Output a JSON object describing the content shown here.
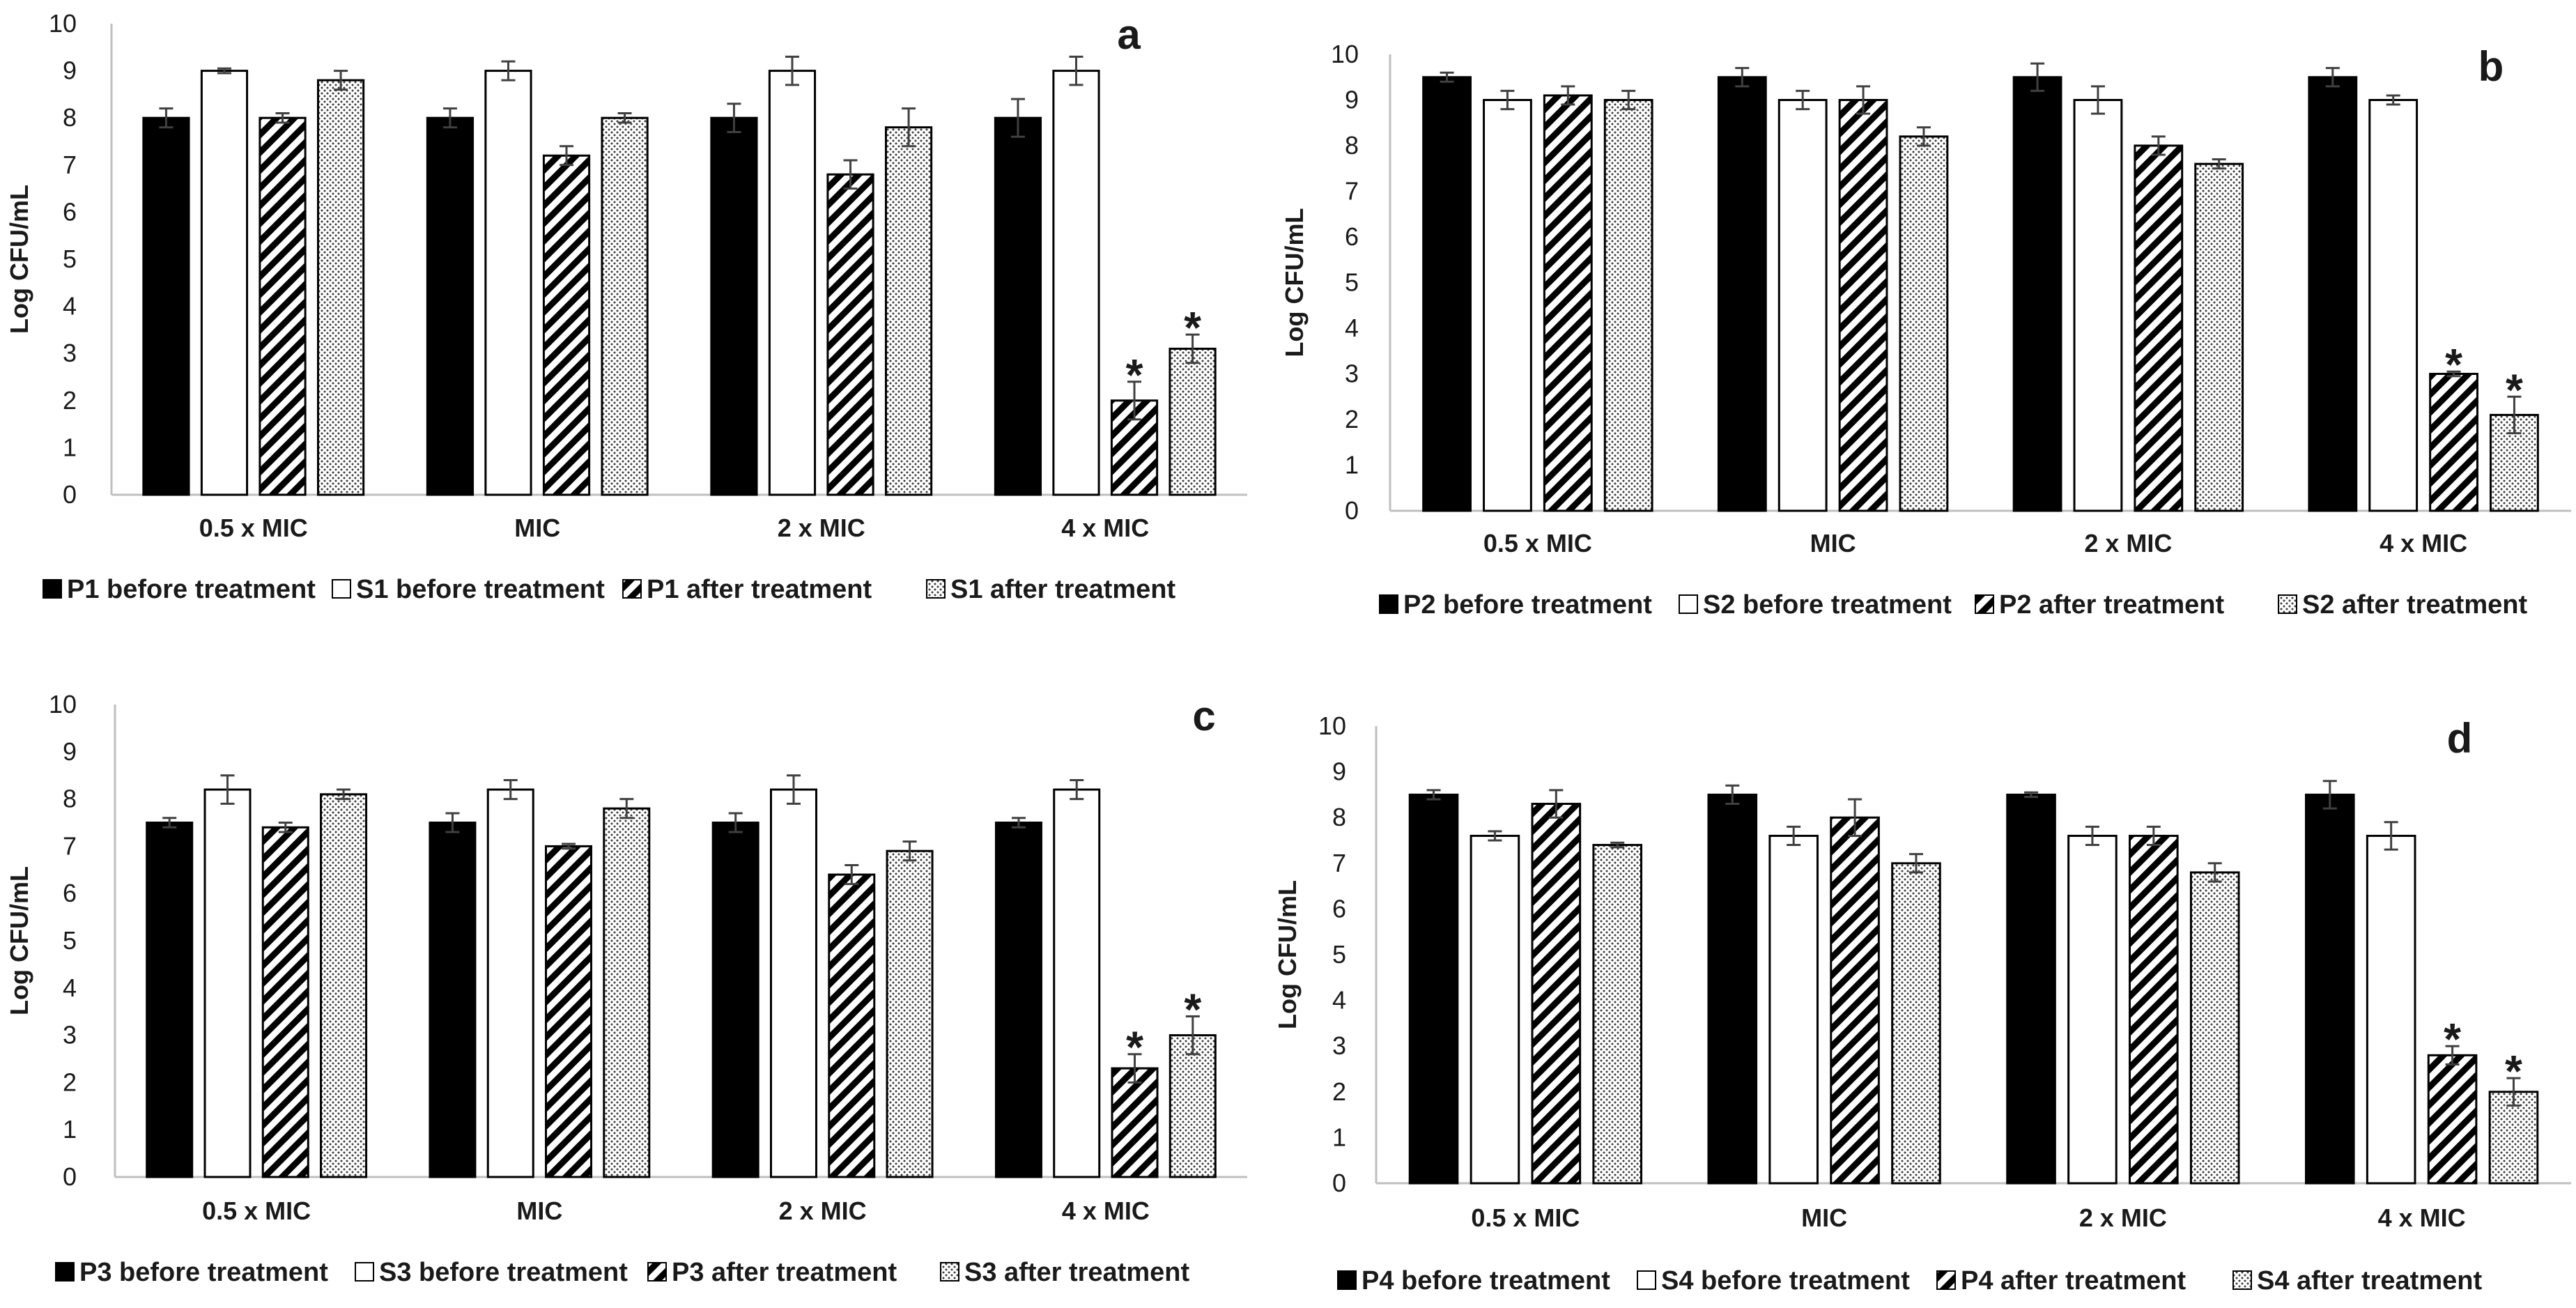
{
  "figure": {
    "colors": {
      "before_p": "#000000",
      "before_s": "#ffffff",
      "axis": "#bfbfbf",
      "text": "#1a1a1a",
      "errorbar": "#404040"
    }
  },
  "chart_data": [
    {
      "type": "bar",
      "panel_letter": "a",
      "ylabel": "Log CFU/mL",
      "ylim": [
        0,
        10
      ],
      "yticks": [
        "0",
        "1",
        "2",
        "3",
        "4",
        "5",
        "6",
        "7",
        "8",
        "9",
        "10"
      ],
      "categories": [
        "0.5 x MIC",
        "MIC",
        "2 x MIC",
        "4 x MIC"
      ],
      "legend_position": "bottom",
      "series": [
        {
          "name": "P1 before treatment",
          "pattern": "solid-black",
          "values": [
            8.0,
            8.0,
            8.0,
            8.0
          ],
          "errors": [
            0.2,
            0.2,
            0.3,
            0.4
          ]
        },
        {
          "name": "S1 before treatment",
          "pattern": "white",
          "values": [
            9.0,
            9.0,
            9.0,
            9.0
          ],
          "errors": [
            0.05,
            0.2,
            0.3,
            0.3
          ]
        },
        {
          "name": "P1 after treatment",
          "pattern": "diagonal-hatch",
          "values": [
            8.0,
            7.2,
            6.8,
            2.0
          ],
          "errors": [
            0.1,
            0.2,
            0.3,
            0.4
          ]
        },
        {
          "name": "S1 after treatment",
          "pattern": "dots",
          "values": [
            8.8,
            8.0,
            7.8,
            3.1
          ],
          "errors": [
            0.2,
            0.1,
            0.4,
            0.3
          ]
        }
      ],
      "annotations": [
        {
          "category": "4 x MIC",
          "series_index": 2,
          "text": "*"
        },
        {
          "category": "4 x MIC",
          "series_index": 3,
          "text": "*"
        }
      ]
    },
    {
      "type": "bar",
      "panel_letter": "b",
      "ylabel": "Log CFU/mL",
      "ylim": [
        0,
        10
      ],
      "yticks": [
        "0",
        "1",
        "2",
        "3",
        "4",
        "5",
        "6",
        "7",
        "8",
        "9",
        "10"
      ],
      "categories": [
        "0.5 x MIC",
        "MIC",
        "2 x MIC",
        "4 x MIC"
      ],
      "legend_position": "bottom",
      "series": [
        {
          "name": "P2 before treatment",
          "pattern": "solid-black",
          "values": [
            9.5,
            9.5,
            9.5,
            9.5
          ],
          "errors": [
            0.1,
            0.2,
            0.3,
            0.2
          ]
        },
        {
          "name": "S2 before treatment",
          "pattern": "white",
          "values": [
            9.0,
            9.0,
            9.0,
            9.0
          ],
          "errors": [
            0.2,
            0.2,
            0.3,
            0.1
          ]
        },
        {
          "name": "P2 after treatment",
          "pattern": "diagonal-hatch",
          "values": [
            9.1,
            9.0,
            8.0,
            3.0
          ],
          "errors": [
            0.2,
            0.3,
            0.2,
            0.05
          ]
        },
        {
          "name": "S2 after treatment",
          "pattern": "dots",
          "values": [
            9.0,
            8.2,
            7.6,
            2.1
          ],
          "errors": [
            0.2,
            0.2,
            0.1,
            0.4
          ]
        }
      ],
      "annotations": [
        {
          "category": "4 x MIC",
          "series_index": 2,
          "text": "*"
        },
        {
          "category": "4 x MIC",
          "series_index": 3,
          "text": "*"
        }
      ]
    },
    {
      "type": "bar",
      "panel_letter": "c",
      "ylabel": "Log CFU/mL",
      "ylim": [
        0,
        10
      ],
      "yticks": [
        "0",
        "1",
        "2",
        "3",
        "4",
        "5",
        "6",
        "7",
        "8",
        "9",
        "10"
      ],
      "categories": [
        "0.5 x MIC",
        "MIC",
        "2 x MIC",
        "4 x MIC"
      ],
      "legend_position": "bottom",
      "series": [
        {
          "name": "P3 before treatment",
          "pattern": "solid-black",
          "values": [
            7.5,
            7.5,
            7.5,
            7.5
          ],
          "errors": [
            0.1,
            0.2,
            0.2,
            0.1
          ]
        },
        {
          "name": "S3 before treatment",
          "pattern": "white",
          "values": [
            8.2,
            8.2,
            8.2,
            8.2
          ],
          "errors": [
            0.3,
            0.2,
            0.3,
            0.2
          ]
        },
        {
          "name": "P3 after treatment",
          "pattern": "diagonal-hatch",
          "values": [
            7.4,
            7.0,
            6.4,
            2.3
          ],
          "errors": [
            0.1,
            0.05,
            0.2,
            0.3
          ]
        },
        {
          "name": "S3 after treatment",
          "pattern": "dots",
          "values": [
            8.1,
            7.8,
            6.9,
            3.0
          ],
          "errors": [
            0.1,
            0.2,
            0.2,
            0.4
          ]
        }
      ],
      "annotations": [
        {
          "category": "4 x MIC",
          "series_index": 2,
          "text": "*"
        },
        {
          "category": "4 x MIC",
          "series_index": 3,
          "text": "*"
        }
      ]
    },
    {
      "type": "bar",
      "panel_letter": "d",
      "ylabel": "Log CFU/mL",
      "ylim": [
        0,
        10
      ],
      "yticks": [
        "0",
        "1",
        "2",
        "3",
        "4",
        "5",
        "6",
        "7",
        "8",
        "9",
        "10"
      ],
      "categories": [
        "0.5 x MIC",
        "MIC",
        "2 x MIC",
        "4 x MIC"
      ],
      "legend_position": "bottom",
      "series": [
        {
          "name": "P4 before treatment",
          "pattern": "solid-black",
          "values": [
            8.5,
            8.5,
            8.5,
            8.5
          ],
          "errors": [
            0.1,
            0.2,
            0.05,
            0.3
          ]
        },
        {
          "name": "S4 before treatment",
          "pattern": "white",
          "values": [
            7.6,
            7.6,
            7.6,
            7.6
          ],
          "errors": [
            0.1,
            0.2,
            0.2,
            0.3
          ]
        },
        {
          "name": "P4 after treatment",
          "pattern": "diagonal-hatch",
          "values": [
            8.3,
            8.0,
            7.6,
            2.8
          ],
          "errors": [
            0.3,
            0.4,
            0.2,
            0.2
          ]
        },
        {
          "name": "S4 after treatment",
          "pattern": "dots",
          "values": [
            7.4,
            7.0,
            6.8,
            2.0
          ],
          "errors": [
            0.05,
            0.2,
            0.2,
            0.3
          ]
        }
      ],
      "annotations": [
        {
          "category": "4 x MIC",
          "series_index": 2,
          "text": "*"
        },
        {
          "category": "4 x MIC",
          "series_index": 3,
          "text": "*"
        }
      ]
    }
  ]
}
